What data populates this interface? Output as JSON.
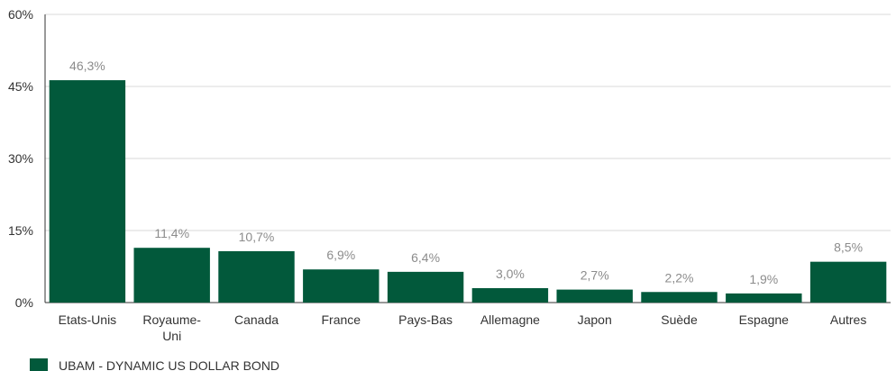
{
  "chart_data": {
    "type": "bar",
    "title": "",
    "xlabel": "",
    "ylabel": "",
    "categories": [
      [
        "Etats-Unis"
      ],
      [
        "Royaume-",
        "Uni"
      ],
      [
        "Canada"
      ],
      [
        "France"
      ],
      [
        "Pays-Bas"
      ],
      [
        "Allemagne"
      ],
      [
        "Japon"
      ],
      [
        "Suède"
      ],
      [
        "Espagne"
      ],
      [
        "Autres"
      ]
    ],
    "series": [
      {
        "name": "UBAM - DYNAMIC US DOLLAR BOND",
        "color": "#02593B",
        "values": [
          46.3,
          11.4,
          10.7,
          6.9,
          6.4,
          3.0,
          2.7,
          2.2,
          1.9,
          8.5
        ],
        "value_labels": [
          "46,3%",
          "11,4%",
          "10,7%",
          "6,9%",
          "6,4%",
          "3,0%",
          "2,7%",
          "2,2%",
          "1,9%",
          "8,5%"
        ]
      }
    ],
    "ylim": [
      0,
      60
    ],
    "yticks": [
      0,
      15,
      30,
      45,
      60
    ],
    "ytick_labels": [
      "0%",
      "15%",
      "30%",
      "45%",
      "60%"
    ],
    "grid": true,
    "legend": {
      "placement": "bottom-left",
      "label": "UBAM - DYNAMIC US DOLLAR BOND"
    },
    "colors": {
      "bar": "#02593B",
      "grid": "#d9d9d9",
      "axis": "#333333"
    }
  }
}
